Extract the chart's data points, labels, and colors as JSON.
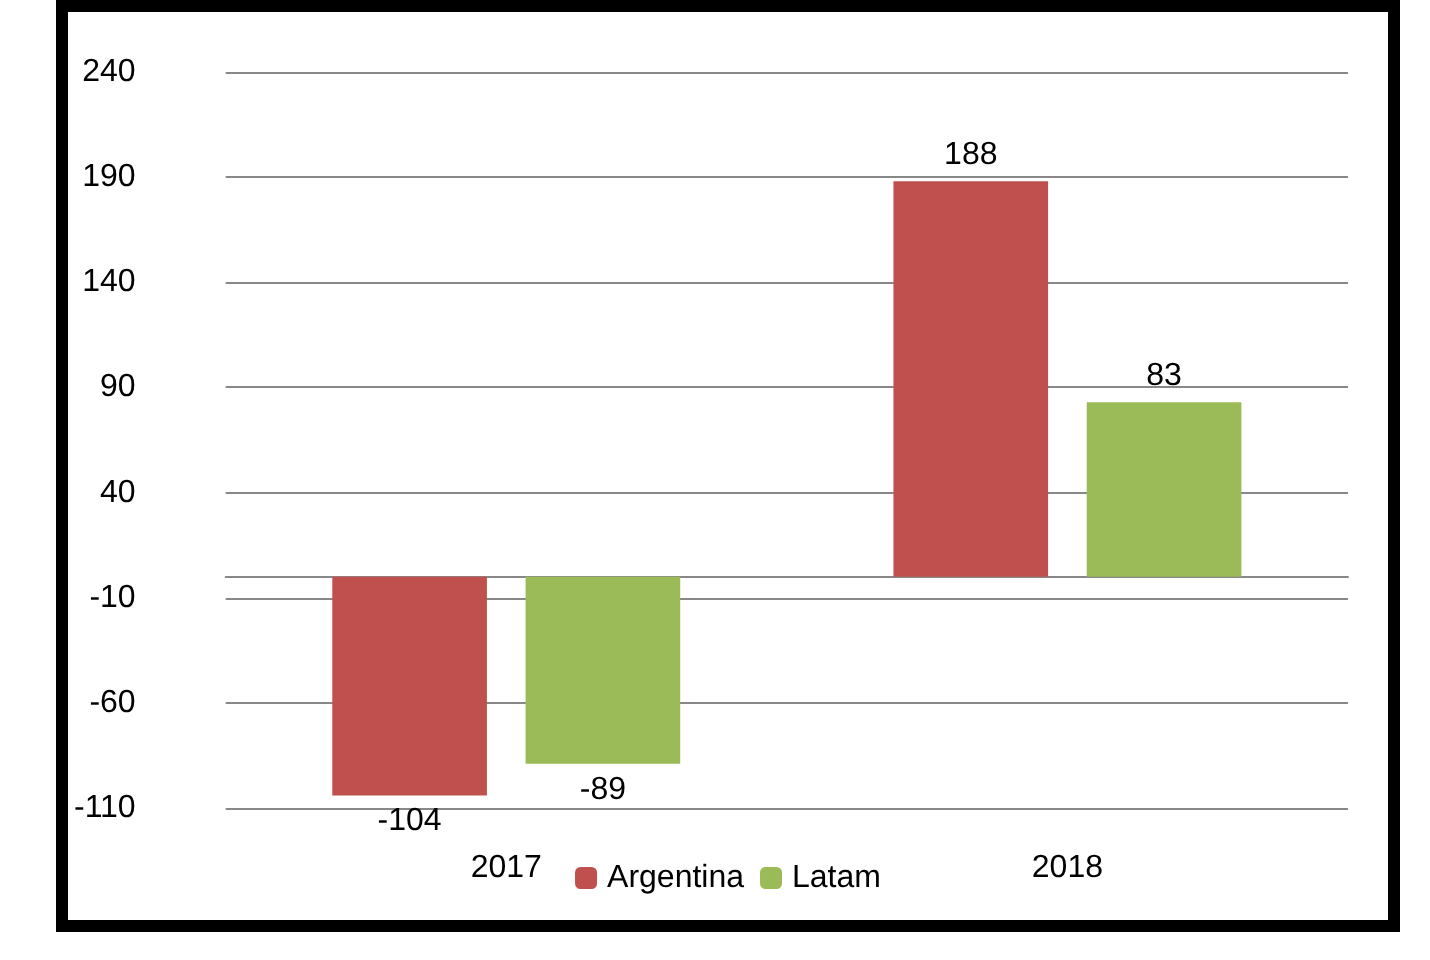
{
  "chart_data": {
    "type": "bar",
    "categories": [
      "2017",
      "2018"
    ],
    "series": [
      {
        "name": "Argentina",
        "color": "#c0504d",
        "values": [
          -104,
          188
        ]
      },
      {
        "name": "Latam",
        "color": "#9bbb59",
        "values": [
          -89,
          83
        ]
      }
    ],
    "ylim": [
      -110,
      240
    ],
    "yticks": [
      -110,
      -60,
      -10,
      40,
      90,
      140,
      190,
      240
    ],
    "grid": "y",
    "legend": "bottom",
    "data_labels": true
  }
}
